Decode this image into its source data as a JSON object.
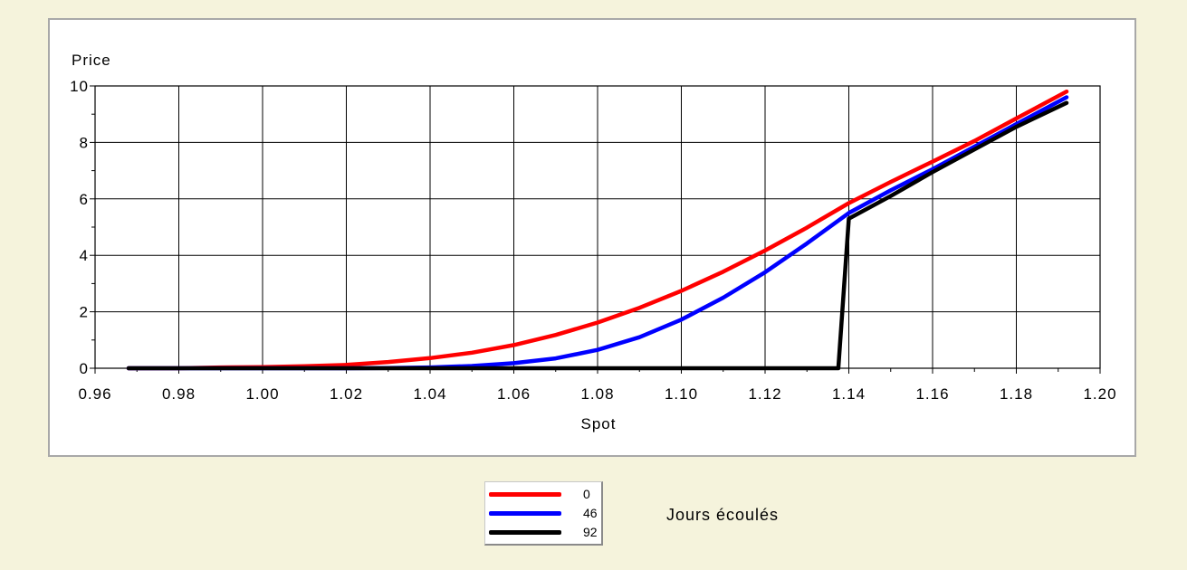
{
  "chart_data": {
    "type": "line",
    "ylabel": "Price",
    "xlabel": "Spot",
    "xlim": [
      0.96,
      1.2
    ],
    "ylim": [
      0,
      10
    ],
    "x_ticks": [
      "0.96",
      "0.98",
      "1.00",
      "1.02",
      "1.04",
      "1.06",
      "1.08",
      "1.10",
      "1.12",
      "1.14",
      "1.16",
      "1.18",
      "1.20"
    ],
    "y_ticks": [
      "0",
      "2",
      "4",
      "6",
      "8",
      "10"
    ],
    "grid": true,
    "legend_title": "Jours écoulés",
    "legend_position": "bottom-center",
    "series": [
      {
        "name": "0",
        "color": "#ff0000",
        "points": [
          [
            0.968,
            0
          ],
          [
            0.98,
            0
          ],
          [
            0.99,
            0.03
          ],
          [
            1.0,
            0.04
          ],
          [
            1.01,
            0.07
          ],
          [
            1.02,
            0.12
          ],
          [
            1.03,
            0.22
          ],
          [
            1.04,
            0.36
          ],
          [
            1.05,
            0.55
          ],
          [
            1.06,
            0.82
          ],
          [
            1.07,
            1.18
          ],
          [
            1.08,
            1.62
          ],
          [
            1.09,
            2.14
          ],
          [
            1.1,
            2.74
          ],
          [
            1.11,
            3.42
          ],
          [
            1.12,
            4.17
          ],
          [
            1.13,
            4.98
          ],
          [
            1.14,
            5.85
          ],
          [
            1.15,
            6.6
          ],
          [
            1.16,
            7.32
          ],
          [
            1.17,
            8.05
          ],
          [
            1.18,
            8.85
          ],
          [
            1.192,
            9.8
          ]
        ]
      },
      {
        "name": "46",
        "color": "#0000ff",
        "points": [
          [
            0.968,
            0
          ],
          [
            1.0,
            0
          ],
          [
            1.02,
            0
          ],
          [
            1.03,
            0.01
          ],
          [
            1.04,
            0.03
          ],
          [
            1.05,
            0.08
          ],
          [
            1.06,
            0.18
          ],
          [
            1.07,
            0.35
          ],
          [
            1.08,
            0.65
          ],
          [
            1.09,
            1.1
          ],
          [
            1.1,
            1.72
          ],
          [
            1.11,
            2.5
          ],
          [
            1.12,
            3.4
          ],
          [
            1.13,
            4.42
          ],
          [
            1.14,
            5.5
          ],
          [
            1.15,
            6.3
          ],
          [
            1.16,
            7.05
          ],
          [
            1.17,
            7.85
          ],
          [
            1.18,
            8.65
          ],
          [
            1.192,
            9.6
          ]
        ]
      },
      {
        "name": "92",
        "color": "#000000",
        "points": [
          [
            0.968,
            0
          ],
          [
            1.0,
            0
          ],
          [
            1.05,
            0
          ],
          [
            1.1,
            0
          ],
          [
            1.1375,
            0
          ],
          [
            1.14,
            5.3
          ],
          [
            1.15,
            6.1
          ],
          [
            1.16,
            6.95
          ],
          [
            1.17,
            7.75
          ],
          [
            1.18,
            8.55
          ],
          [
            1.192,
            9.4
          ]
        ]
      }
    ]
  }
}
